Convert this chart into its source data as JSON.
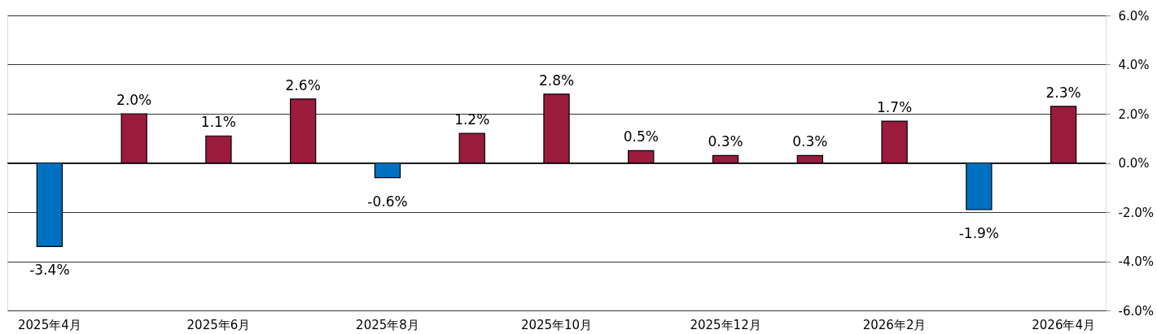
{
  "chart_data": {
    "type": "bar",
    "categories": [
      "2025年4月",
      null,
      "2025年6月",
      null,
      "2025年8月",
      null,
      "2025年10月",
      null,
      "2025年12月",
      null,
      "2026年2月",
      null,
      "2026年4月"
    ],
    "values": [
      -3.4,
      2.0,
      1.1,
      2.6,
      -0.6,
      1.2,
      2.8,
      0.5,
      0.3,
      0.3,
      1.7,
      -1.9,
      2.3
    ],
    "colors": [
      "#0070c0",
      "#9b1b3c",
      "#9b1b3c",
      "#9b1b3c",
      "#0070c0",
      "#9b1b3c",
      "#9b1b3c",
      "#9b1b3c",
      "#9b1b3c",
      "#9b1b3c",
      "#9b1b3c",
      "#0070c0",
      "#9b1b3c"
    ],
    "value_labels": [
      "-3.4%",
      "2.0%",
      "1.1%",
      "2.6%",
      "-0.6%",
      "1.2%",
      "2.8%",
      "0.5%",
      "0.3%",
      "0.3%",
      "1.7%",
      "-1.9%",
      "2.3%"
    ],
    "ylim": [
      -6.0,
      6.0
    ],
    "yticks": [
      {
        "value": -6.0,
        "label": "-6.0%"
      },
      {
        "value": -4.0,
        "label": "-4.0%"
      },
      {
        "value": -2.0,
        "label": "-2.0%"
      },
      {
        "value": 0.0,
        "label": "0.0%"
      },
      {
        "value": 2.0,
        "label": "2.0%"
      },
      {
        "value": 4.0,
        "label": "4.0%"
      },
      {
        "value": 6.0,
        "label": "6.0%"
      }
    ],
    "grid": "y"
  }
}
